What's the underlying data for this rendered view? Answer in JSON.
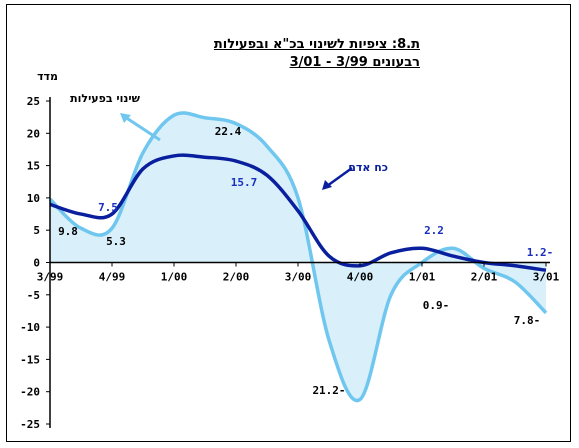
{
  "chart_data": {
    "type": "line",
    "title": "ת.8: ציפיות לשינוי בכ\"א ובפעילות",
    "subtitle": "רבעונים 3/99 - 3/01",
    "ylabel": "מדד",
    "ylim": [
      -25,
      25
    ],
    "yticks": [
      "25",
      "20",
      "15",
      "10",
      "5",
      "0",
      "-5",
      "-10",
      "-15",
      "-20",
      "-25"
    ],
    "categories": [
      "3/99",
      "4/99",
      "1/00",
      "2/00",
      "3/00",
      "4/00",
      "1/01",
      "2/01",
      "3/01"
    ],
    "x": [
      0,
      0.5,
      1,
      1.5,
      2,
      2.5,
      3,
      3.5,
      4,
      4.5,
      5,
      5.5,
      6,
      6.5,
      7,
      7.5,
      8
    ],
    "series": [
      {
        "name": "שינוי בפעילות",
        "color": "#6fc6ef",
        "fill": "#d9f0fb",
        "values": [
          9.8,
          5.3,
          5.3,
          17.0,
          22.8,
          22.4,
          21.5,
          18.0,
          10.0,
          -12.0,
          -21.2,
          -5.0,
          0.0,
          2.2,
          -0.9,
          -3.0,
          -7.8
        ]
      },
      {
        "name": "כח אדם",
        "color": "#0a1f9e",
        "values": [
          9.0,
          7.5,
          7.5,
          14.5,
          16.5,
          16.3,
          15.7,
          13.5,
          8.0,
          1.0,
          -0.5,
          1.5,
          2.2,
          1.0,
          0.0,
          -0.5,
          -1.2
        ]
      }
    ],
    "annotations": [
      {
        "text": "9.8",
        "color": "#000000"
      },
      {
        "text": "5.3",
        "color": "#000000"
      },
      {
        "text": "7.5",
        "color": "#1a2fbf"
      },
      {
        "text": "22.4",
        "color": "#000000"
      },
      {
        "text": "15.7",
        "color": "#1a2fbf"
      },
      {
        "text": "21.2-",
        "color": "#000000"
      },
      {
        "text": "2.2",
        "color": "#1a2fbf"
      },
      {
        "text": "0.9-",
        "color": "#000000"
      },
      {
        "text": "7.8-",
        "color": "#000000"
      },
      {
        "text": "1.2-",
        "color": "#1a2fbf"
      }
    ]
  }
}
